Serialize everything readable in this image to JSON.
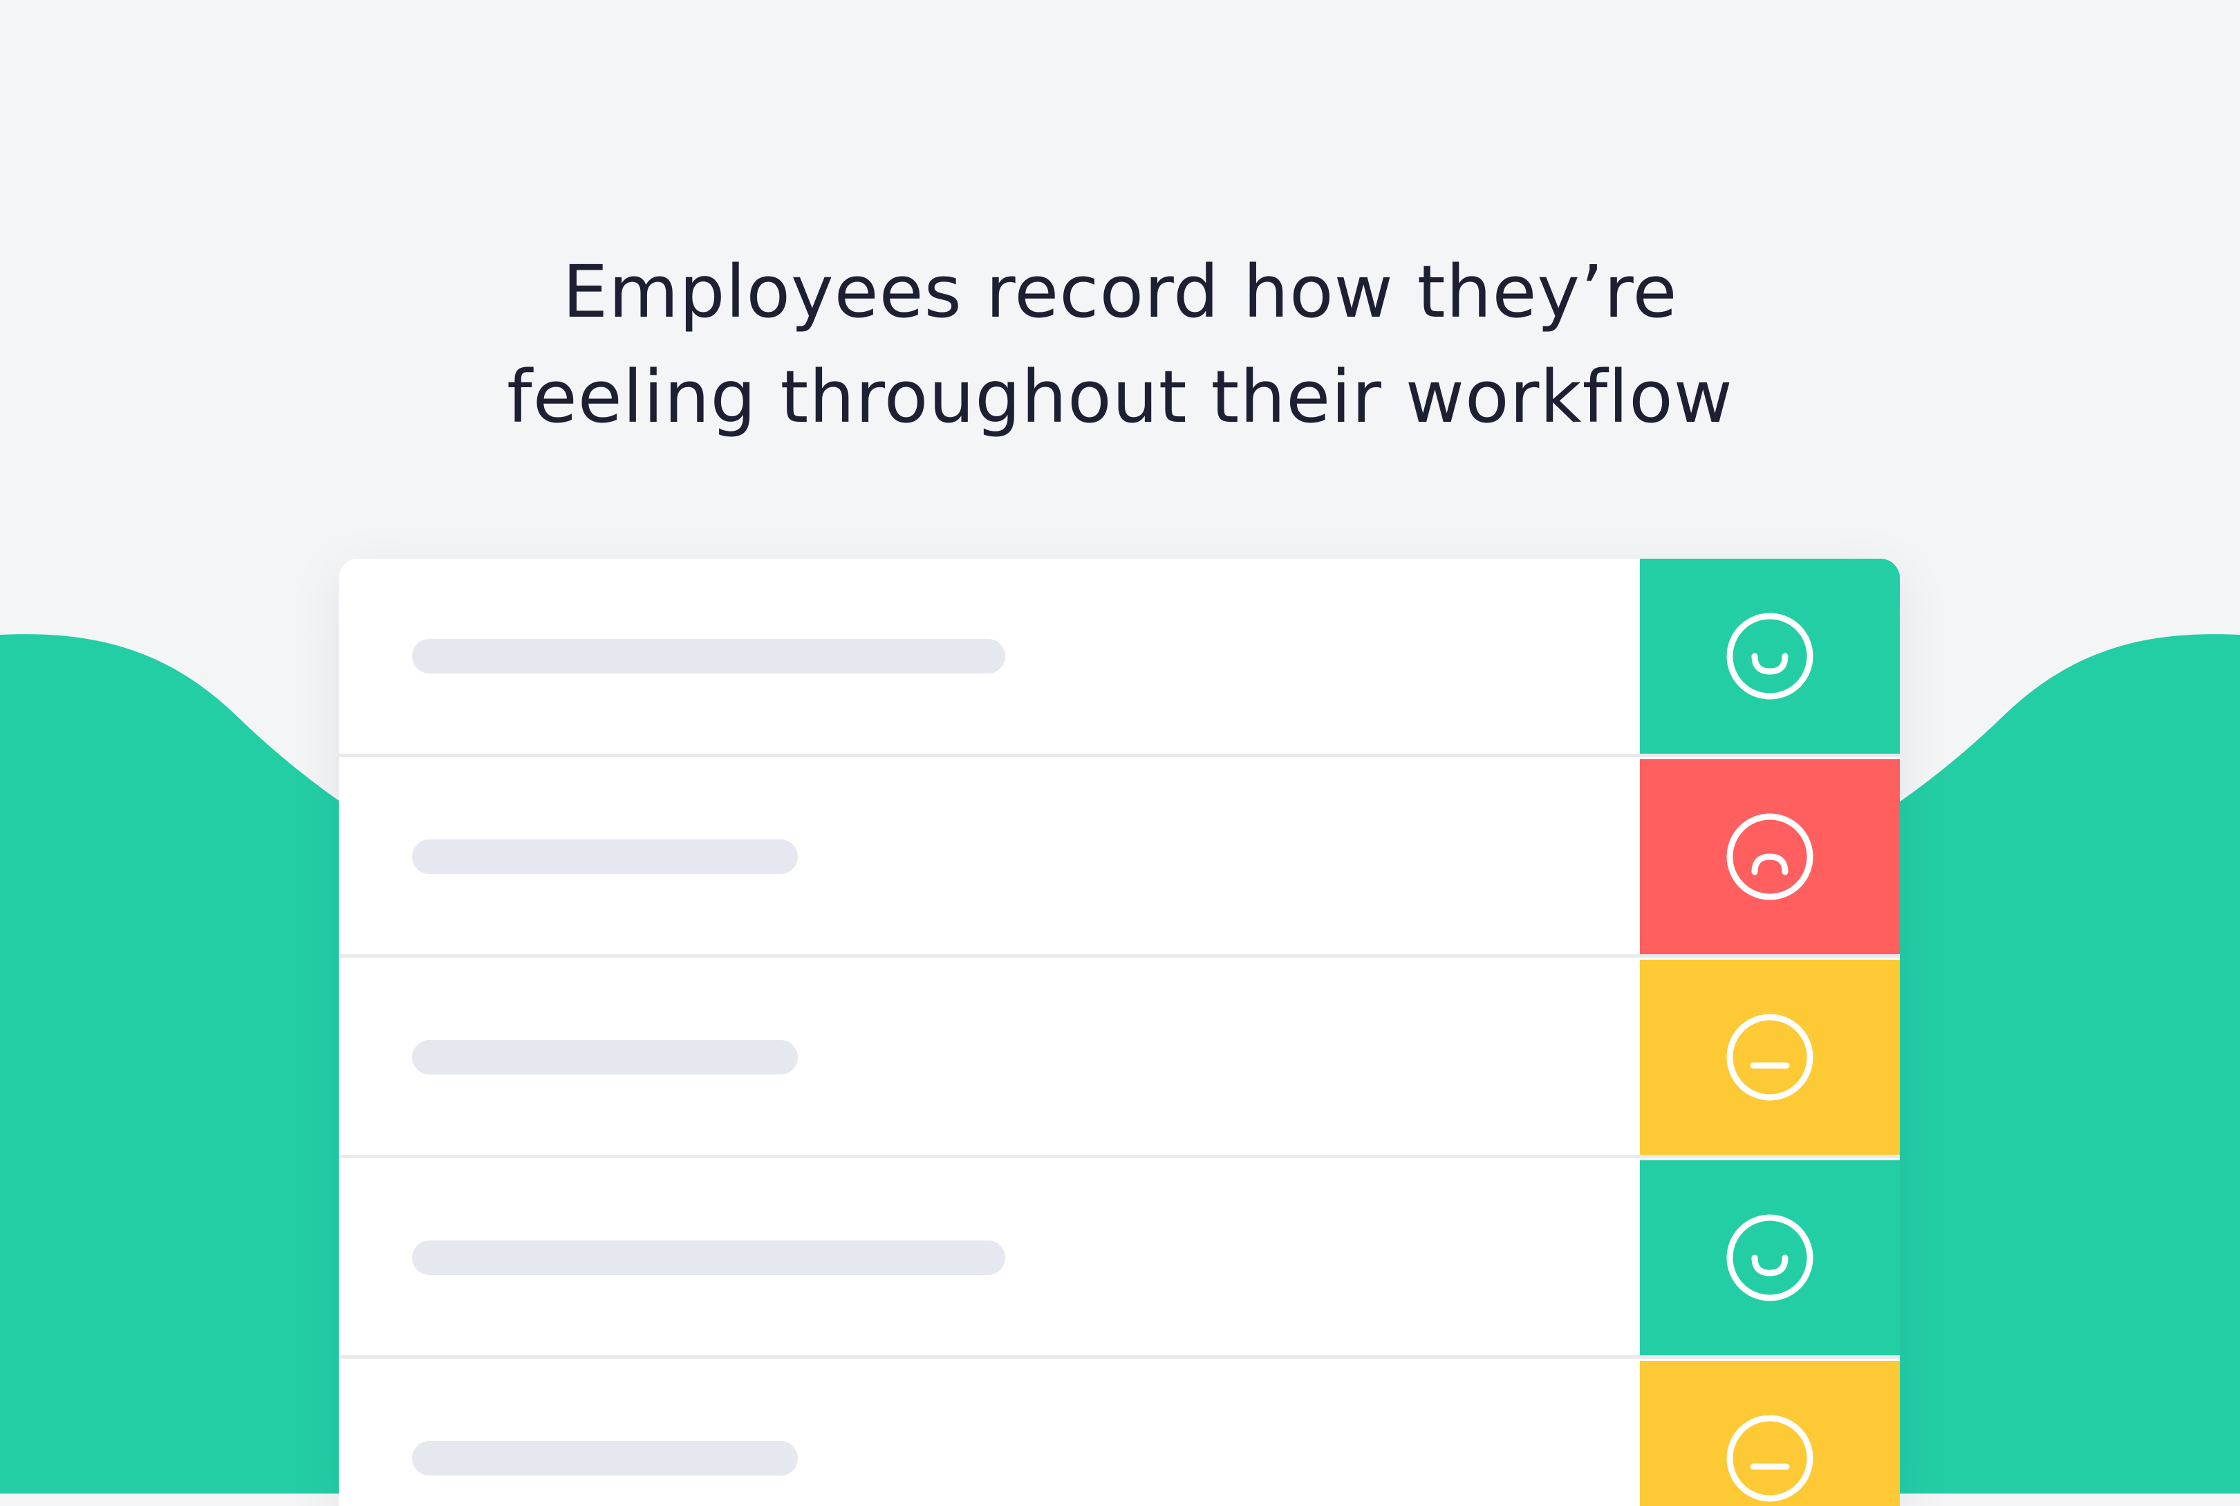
{
  "headline": {
    "line1": "Employees record how they’re",
    "line2": "feeling throughout their workflow"
  },
  "colors": {
    "background": "#f4f5f7",
    "wave": "#24cea5",
    "card": "#ffffff",
    "placeholder": "#e5e8ef",
    "happy": "#24cea5",
    "sad": "#ff5f5f",
    "neutral": "#fdc935",
    "text": "#1d2033"
  },
  "feed": {
    "rows": [
      {
        "mood": "happy",
        "placeholder_length": "long",
        "face_icon": "happy-face-icon"
      },
      {
        "mood": "sad",
        "placeholder_length": "short",
        "face_icon": "sad-face-icon"
      },
      {
        "mood": "neutral",
        "placeholder_length": "short",
        "face_icon": "neutral-face-icon"
      },
      {
        "mood": "happy",
        "placeholder_length": "long",
        "face_icon": "happy-face-icon"
      },
      {
        "mood": "neutral",
        "placeholder_length": "short",
        "face_icon": "neutral-face-icon"
      }
    ]
  }
}
